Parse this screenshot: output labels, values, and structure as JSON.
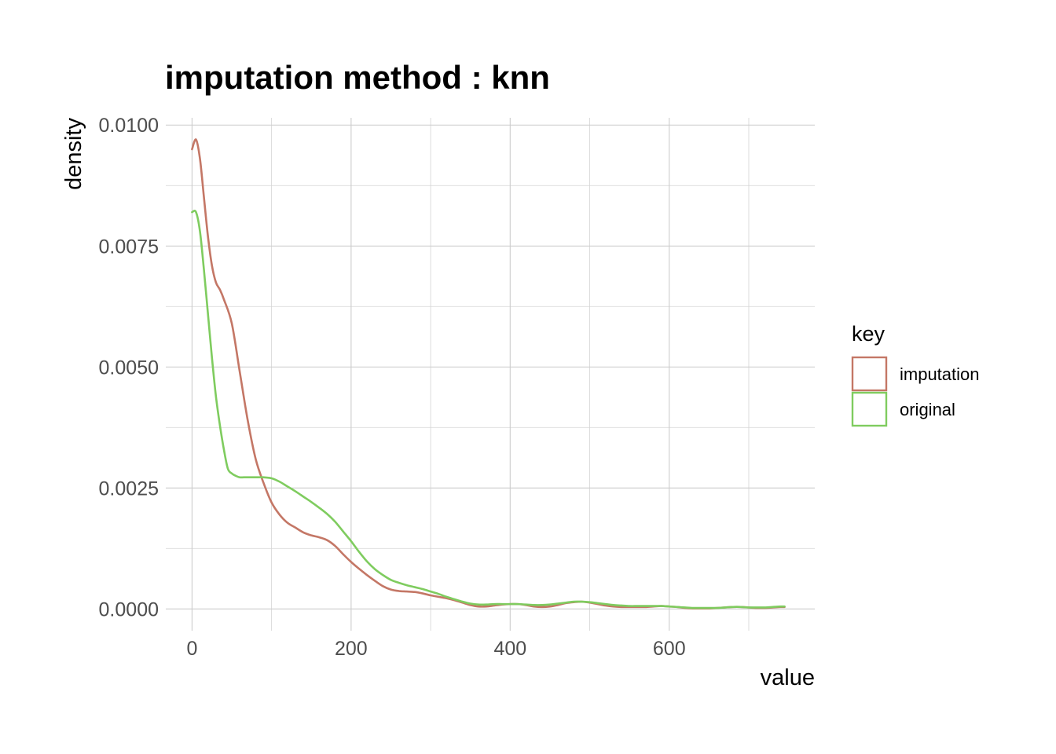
{
  "chart_data": {
    "type": "line",
    "title": "imputation method : knn",
    "xlabel": "value",
    "ylabel": "density",
    "xlim": [
      -33,
      783
    ],
    "ylim": [
      -0.00045,
      0.01015
    ],
    "x_ticks": [
      0,
      200,
      400,
      600
    ],
    "x_minor_ticks": [
      100,
      300,
      500,
      700
    ],
    "y_ticks": [
      0.0,
      0.0025,
      0.005,
      0.0075,
      0.01
    ],
    "y_tick_labels": [
      "0.0000",
      "0.0025",
      "0.0050",
      "0.0075",
      "0.0100"
    ],
    "y_minor_ticks": [
      0.00125,
      0.00375,
      0.00625,
      0.00875
    ],
    "grid": true,
    "legend": {
      "title": "key",
      "position": "right"
    },
    "series": [
      {
        "name": "imputation",
        "color": "#c47766",
        "x": [
          0,
          5,
          10,
          15,
          20,
          25,
          30,
          35,
          40,
          50,
          60,
          70,
          80,
          90,
          100,
          110,
          120,
          130,
          140,
          150,
          160,
          170,
          180,
          190,
          200,
          210,
          220,
          230,
          240,
          250,
          260,
          270,
          280,
          290,
          300,
          310,
          320,
          330,
          340,
          350,
          360,
          370,
          380,
          390,
          400,
          410,
          420,
          430,
          440,
          450,
          460,
          470,
          480,
          490,
          500,
          510,
          520,
          530,
          540,
          550,
          560,
          570,
          580,
          590,
          600,
          610,
          620,
          630,
          640,
          650,
          660,
          670,
          680,
          690,
          700,
          710,
          720,
          730,
          740,
          745
        ],
        "values": [
          0.0095,
          0.0097,
          0.0093,
          0.0085,
          0.0077,
          0.0071,
          0.00675,
          0.0066,
          0.0064,
          0.0059,
          0.0049,
          0.0039,
          0.0031,
          0.0026,
          0.0022,
          0.00195,
          0.00178,
          0.00168,
          0.00158,
          0.00152,
          0.00148,
          0.00142,
          0.0013,
          0.00113,
          0.00097,
          0.00083,
          0.0007,
          0.00058,
          0.00047,
          0.0004,
          0.00037,
          0.00036,
          0.00035,
          0.00032,
          0.00028,
          0.00025,
          0.00022,
          0.00018,
          0.00013,
          8e-05,
          5e-05,
          5e-05,
          7e-05,
          9e-05,
          0.0001,
          0.0001,
          8e-05,
          5e-05,
          4e-05,
          5e-05,
          8e-05,
          0.00012,
          0.00014,
          0.00015,
          0.00013,
          0.0001,
          7e-05,
          5e-05,
          4e-05,
          4e-05,
          4e-05,
          4e-05,
          5e-05,
          6e-05,
          5e-05,
          4e-05,
          2e-05,
          1e-05,
          1e-05,
          1e-05,
          2e-05,
          3e-05,
          4e-05,
          4e-05,
          3e-05,
          2e-05,
          2e-05,
          3e-05,
          4e-05,
          4e-05
        ]
      },
      {
        "name": "original",
        "color": "#7fcc5f",
        "x": [
          0,
          5,
          10,
          15,
          20,
          25,
          30,
          35,
          40,
          45,
          50,
          55,
          60,
          65,
          70,
          75,
          80,
          90,
          100,
          110,
          120,
          130,
          140,
          150,
          160,
          170,
          180,
          190,
          200,
          210,
          220,
          230,
          240,
          250,
          260,
          270,
          280,
          290,
          300,
          310,
          320,
          330,
          340,
          350,
          360,
          370,
          380,
          390,
          400,
          410,
          420,
          430,
          440,
          450,
          460,
          470,
          480,
          490,
          500,
          510,
          520,
          530,
          540,
          550,
          560,
          570,
          580,
          590,
          600,
          610,
          620,
          630,
          640,
          650,
          660,
          670,
          680,
          690,
          700,
          710,
          720,
          730,
          740,
          745
        ],
        "values": [
          0.0082,
          0.0082,
          0.0078,
          0.007,
          0.0061,
          0.0052,
          0.0044,
          0.0038,
          0.0033,
          0.0029,
          0.0028,
          0.00275,
          0.00272,
          0.00272,
          0.00272,
          0.00272,
          0.00272,
          0.00272,
          0.0027,
          0.00263,
          0.00253,
          0.00243,
          0.00232,
          0.00221,
          0.00209,
          0.00196,
          0.0018,
          0.0016,
          0.0014,
          0.00118,
          0.00098,
          0.00082,
          0.0007,
          0.0006,
          0.00054,
          0.00049,
          0.00045,
          0.00041,
          0.00036,
          0.00031,
          0.00025,
          0.0002,
          0.00015,
          0.00011,
          9e-05,
          9e-05,
          0.0001,
          0.0001,
          0.0001,
          0.0001,
          9e-05,
          8e-05,
          8e-05,
          9e-05,
          0.00011,
          0.00013,
          0.00015,
          0.00015,
          0.00014,
          0.00012,
          0.0001,
          8e-05,
          7e-05,
          6e-05,
          6e-05,
          6e-05,
          6e-05,
          6e-05,
          5e-05,
          4e-05,
          3e-05,
          2e-05,
          2e-05,
          2e-05,
          2e-05,
          3e-05,
          4e-05,
          4e-05,
          3e-05,
          3e-05,
          3e-05,
          4e-05,
          5e-05,
          5e-05
        ]
      }
    ]
  }
}
